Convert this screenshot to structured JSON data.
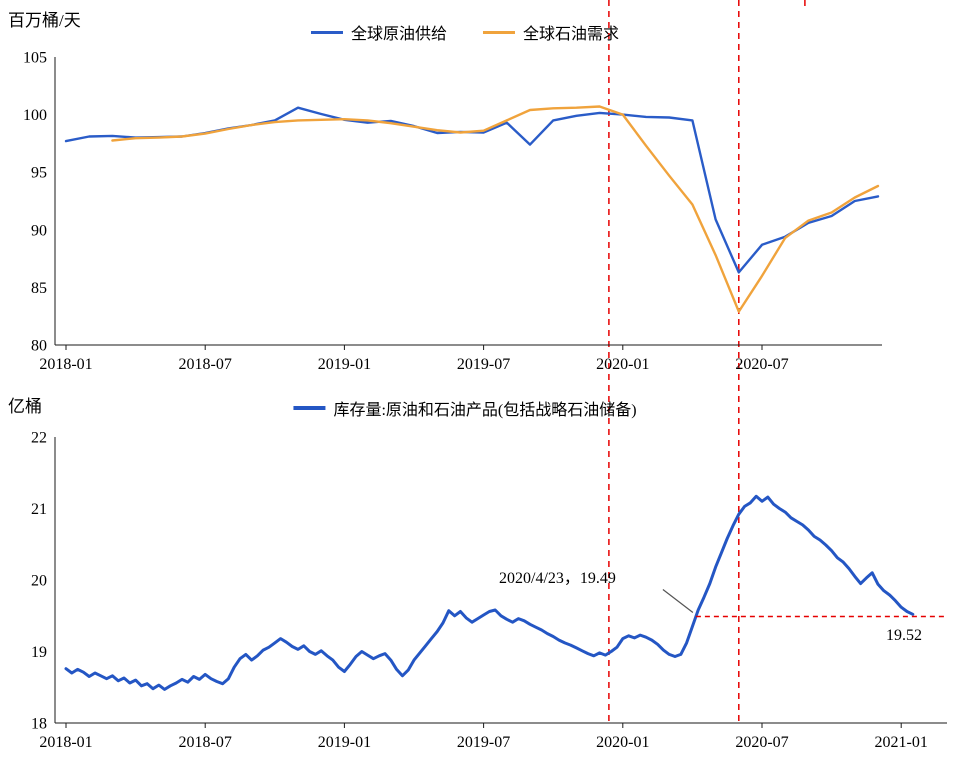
{
  "colors": {
    "supply": "#2a5cc8",
    "demand": "#f0a33c",
    "inventory": "#2456c4",
    "marker_red": "#e60000"
  },
  "markers": {
    "event_vlines_months": [
      23.4,
      29.0
    ],
    "partial_vline_month": 31.85
  },
  "chart_data": [
    {
      "type": "line",
      "title": "",
      "ylabel": "百万桶/天",
      "x_encoding": "months since 2018-01",
      "ylim": [
        80,
        105
      ],
      "yticks": [
        80,
        85,
        90,
        95,
        100,
        105
      ],
      "xtick_months": [
        0,
        6,
        12,
        18,
        24,
        30
      ],
      "xtick_labels": [
        "2018-01",
        "2018-07",
        "2019-01",
        "2019-07",
        "2020-01",
        "2020-07"
      ],
      "legend_position": "top-center",
      "grid": false,
      "series": [
        {
          "name": "全球原油供给",
          "color": "#2a5cc8",
          "stroke_width": 2.4,
          "x_start": 0,
          "values": [
            97.7,
            98.1,
            98.15,
            98.0,
            98.05,
            98.1,
            98.4,
            98.8,
            99.1,
            99.5,
            100.6,
            100.05,
            99.55,
            99.3,
            99.45,
            99.0,
            98.4,
            98.5,
            98.45,
            99.3,
            97.4,
            99.5,
            99.9,
            100.15,
            100.0,
            99.8,
            99.75,
            99.5,
            90.9,
            86.3,
            88.7,
            89.4,
            90.6,
            91.2,
            92.5,
            92.9
          ]
        },
        {
          "name": "全球石油需求",
          "color": "#f0a33c",
          "stroke_width": 2.4,
          "x_start": 2,
          "values": [
            97.75,
            97.95,
            98.0,
            98.1,
            98.35,
            98.75,
            99.1,
            99.35,
            99.5,
            99.55,
            99.6,
            99.5,
            99.25,
            98.95,
            98.65,
            98.45,
            98.6,
            99.5,
            100.4,
            100.55,
            100.6,
            100.7,
            100.0,
            97.3,
            94.7,
            92.2,
            87.8,
            82.9,
            86.0,
            89.3,
            90.8,
            91.5,
            92.8,
            93.8
          ]
        }
      ]
    },
    {
      "type": "line",
      "title": "",
      "ylabel": "亿桶",
      "x_encoding": "months since 2018-01",
      "ylim": [
        18,
        22
      ],
      "yticks": [
        18,
        19,
        20,
        21,
        22
      ],
      "xtick_months": [
        0,
        6,
        12,
        18,
        24,
        30,
        36
      ],
      "xtick_labels": [
        "2018-01",
        "2018-07",
        "2019-01",
        "2019-07",
        "2020-01",
        "2020-07",
        "2021-01"
      ],
      "legend_position": "top-center",
      "grid": false,
      "series": [
        {
          "name": "库存量:原油和石油产品(包括战略石油储备)",
          "color": "#2456c4",
          "stroke_width": 3,
          "points": [
            [
              0,
              18.76
            ],
            [
              0.25,
              18.7
            ],
            [
              0.5,
              18.75
            ],
            [
              0.75,
              18.71
            ],
            [
              1,
              18.65
            ],
            [
              1.25,
              18.7
            ],
            [
              1.5,
              18.66
            ],
            [
              1.75,
              18.62
            ],
            [
              2,
              18.66
            ],
            [
              2.25,
              18.59
            ],
            [
              2.5,
              18.63
            ],
            [
              2.75,
              18.56
            ],
            [
              3,
              18.6
            ],
            [
              3.25,
              18.52
            ],
            [
              3.5,
              18.55
            ],
            [
              3.75,
              18.48
            ],
            [
              4,
              18.53
            ],
            [
              4.25,
              18.47
            ],
            [
              4.5,
              18.52
            ],
            [
              4.75,
              18.56
            ],
            [
              5,
              18.61
            ],
            [
              5.25,
              18.57
            ],
            [
              5.5,
              18.65
            ],
            [
              5.75,
              18.61
            ],
            [
              6,
              18.68
            ],
            [
              6.25,
              18.62
            ],
            [
              6.5,
              18.58
            ],
            [
              6.75,
              18.55
            ],
            [
              7,
              18.62
            ],
            [
              7.25,
              18.78
            ],
            [
              7.5,
              18.9
            ],
            [
              7.75,
              18.96
            ],
            [
              8,
              18.88
            ],
            [
              8.25,
              18.94
            ],
            [
              8.5,
              19.02
            ],
            [
              8.75,
              19.06
            ],
            [
              9,
              19.12
            ],
            [
              9.25,
              19.18
            ],
            [
              9.5,
              19.13
            ],
            [
              9.75,
              19.07
            ],
            [
              10,
              19.03
            ],
            [
              10.25,
              19.08
            ],
            [
              10.5,
              19.0
            ],
            [
              10.75,
              18.96
            ],
            [
              11,
              19.01
            ],
            [
              11.25,
              18.94
            ],
            [
              11.5,
              18.88
            ],
            [
              11.75,
              18.78
            ],
            [
              12,
              18.72
            ],
            [
              12.25,
              18.82
            ],
            [
              12.5,
              18.93
            ],
            [
              12.75,
              19.0
            ],
            [
              13,
              18.95
            ],
            [
              13.25,
              18.9
            ],
            [
              13.5,
              18.94
            ],
            [
              13.75,
              18.97
            ],
            [
              14,
              18.88
            ],
            [
              14.25,
              18.75
            ],
            [
              14.5,
              18.66
            ],
            [
              14.75,
              18.74
            ],
            [
              15,
              18.88
            ],
            [
              15.25,
              18.98
            ],
            [
              15.5,
              19.08
            ],
            [
              15.75,
              19.18
            ],
            [
              16,
              19.28
            ],
            [
              16.25,
              19.4
            ],
            [
              16.5,
              19.57
            ],
            [
              16.75,
              19.5
            ],
            [
              17,
              19.56
            ],
            [
              17.25,
              19.47
            ],
            [
              17.5,
              19.41
            ],
            [
              17.75,
              19.46
            ],
            [
              18,
              19.51
            ],
            [
              18.25,
              19.56
            ],
            [
              18.5,
              19.58
            ],
            [
              18.75,
              19.5
            ],
            [
              19,
              19.45
            ],
            [
              19.25,
              19.41
            ],
            [
              19.5,
              19.46
            ],
            [
              19.75,
              19.43
            ],
            [
              20,
              19.38
            ],
            [
              20.25,
              19.34
            ],
            [
              20.5,
              19.3
            ],
            [
              20.75,
              19.25
            ],
            [
              21,
              19.21
            ],
            [
              21.25,
              19.16
            ],
            [
              21.5,
              19.12
            ],
            [
              21.75,
              19.09
            ],
            [
              22,
              19.05
            ],
            [
              22.25,
              19.01
            ],
            [
              22.5,
              18.97
            ],
            [
              22.75,
              18.94
            ],
            [
              23,
              18.98
            ],
            [
              23.25,
              18.95
            ],
            [
              23.5,
              19.0
            ],
            [
              23.75,
              19.06
            ],
            [
              24,
              19.18
            ],
            [
              24.25,
              19.22
            ],
            [
              24.5,
              19.19
            ],
            [
              24.75,
              19.23
            ],
            [
              25,
              19.2
            ],
            [
              25.25,
              19.16
            ],
            [
              25.5,
              19.1
            ],
            [
              25.75,
              19.02
            ],
            [
              26,
              18.96
            ],
            [
              26.25,
              18.93
            ],
            [
              26.5,
              18.96
            ],
            [
              26.75,
              19.12
            ],
            [
              27,
              19.35
            ],
            [
              27.25,
              19.58
            ],
            [
              27.5,
              19.76
            ],
            [
              27.75,
              19.95
            ],
            [
              28,
              20.18
            ],
            [
              28.25,
              20.38
            ],
            [
              28.5,
              20.58
            ],
            [
              28.75,
              20.76
            ],
            [
              29,
              20.92
            ],
            [
              29.25,
              21.03
            ],
            [
              29.5,
              21.08
            ],
            [
              29.75,
              21.17
            ],
            [
              30,
              21.1
            ],
            [
              30.25,
              21.16
            ],
            [
              30.5,
              21.06
            ],
            [
              30.75,
              21.0
            ],
            [
              31,
              20.95
            ],
            [
              31.25,
              20.87
            ],
            [
              31.5,
              20.82
            ],
            [
              31.75,
              20.77
            ],
            [
              32,
              20.7
            ],
            [
              32.25,
              20.61
            ],
            [
              32.5,
              20.56
            ],
            [
              32.75,
              20.49
            ],
            [
              33,
              20.41
            ],
            [
              33.25,
              20.31
            ],
            [
              33.5,
              20.25
            ],
            [
              33.75,
              20.16
            ],
            [
              34,
              20.05
            ],
            [
              34.25,
              19.95
            ],
            [
              34.5,
              20.03
            ],
            [
              34.75,
              20.1
            ],
            [
              35,
              19.94
            ],
            [
              35.25,
              19.85
            ],
            [
              35.5,
              19.79
            ],
            [
              35.75,
              19.71
            ],
            [
              36,
              19.62
            ],
            [
              36.25,
              19.56
            ],
            [
              36.5,
              19.52
            ]
          ]
        }
      ],
      "annotation": {
        "text": "2020/4/23，19.49",
        "value": 19.49,
        "x_month": 27.15,
        "end_label": "19.52"
      }
    }
  ]
}
